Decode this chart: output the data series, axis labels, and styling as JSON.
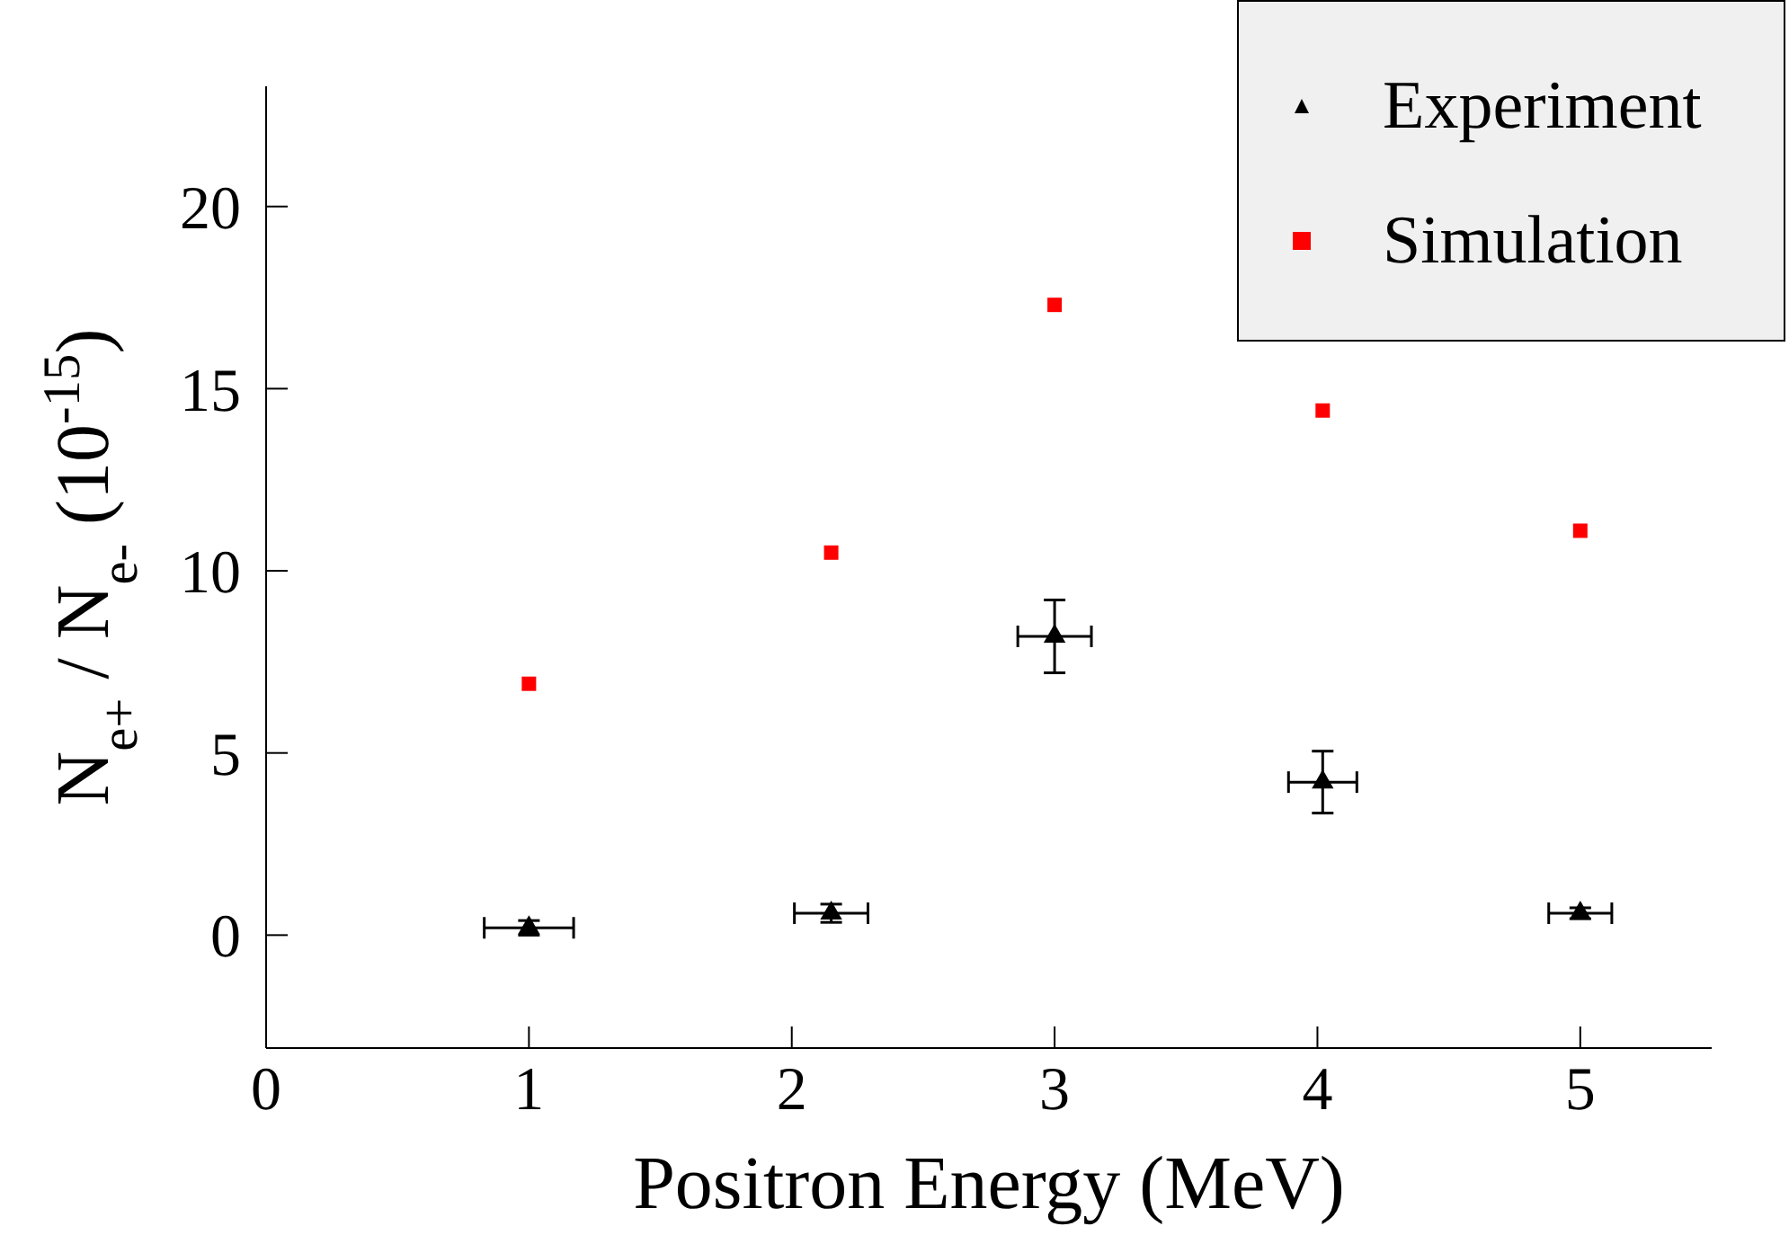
{
  "chart_data": {
    "type": "scatter",
    "xlabel": "Positron Energy (MeV)",
    "ylabel": "N$_{e+}$ / N$_{e-}$  (10$^{-15}$)",
    "xlim": [
      0,
      5.5
    ],
    "xticks": [
      0,
      1,
      2,
      3,
      4,
      5
    ],
    "ylim": [
      -3.1,
      23.3
    ],
    "yticks": [
      0,
      5,
      10,
      15,
      20
    ],
    "grid": false,
    "legend": "top right",
    "series": [
      {
        "name": "Experiment",
        "color": "#000000",
        "marker": "triangle",
        "x": [
          1.0,
          2.15,
          3.0,
          4.02,
          5.0
        ],
        "values": [
          0.2,
          0.6,
          8.2,
          4.2,
          0.6
        ],
        "errors": [
          0.2,
          0.25,
          1.0,
          0.85,
          0.15
        ],
        "xerrors": [
          0.17,
          0.14,
          0.14,
          0.13,
          0.12
        ]
      },
      {
        "name": "Simulation",
        "color": "#ff0000",
        "marker": "square",
        "x": [
          1.0,
          2.15,
          3.0,
          4.02,
          5.0
        ],
        "values": [
          6.9,
          10.5,
          17.3,
          14.4,
          11.1
        ]
      }
    ]
  }
}
